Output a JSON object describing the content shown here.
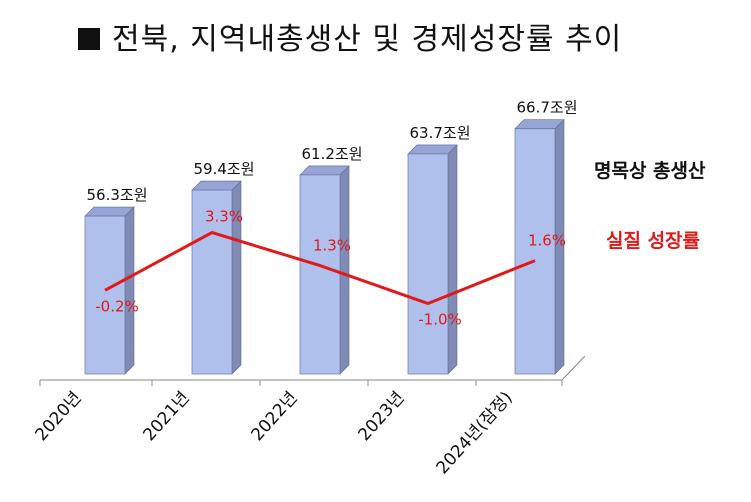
{
  "title": "전북, 지역내총생산 및 경제성장률 추이",
  "legend": {
    "nominal_label": "명목상 총생산",
    "real_label": "실질 성장률"
  },
  "colors": {
    "bar_front": "#b0c0ec",
    "bar_side": "#7f8bb5",
    "bar_top": "#96a5d5",
    "line": "#e11919",
    "title": "#111111"
  },
  "chart_data": {
    "type": "bar",
    "categories": [
      "2020년",
      "2021년",
      "2022년",
      "2023년",
      "2024년(잠정)"
    ],
    "series": [
      {
        "name": "명목상 총생산",
        "type": "bar",
        "values": [
          56.3,
          59.4,
          61.2,
          63.7,
          66.7
        ],
        "labels": [
          "56.3조원",
          "59.4조원",
          "61.2조원",
          "63.7조원",
          "66.7조원"
        ]
      },
      {
        "name": "실질 성장률",
        "type": "line",
        "values": [
          -0.2,
          3.3,
          1.3,
          -1.0,
          1.6
        ],
        "labels": [
          "-0.2%",
          "3.3%",
          "1.3%",
          "-1.0%",
          "1.6%"
        ]
      }
    ],
    "title": "전북, 지역내총생산 및 경제성장률 추이",
    "xlabel": "",
    "ylabel": "",
    "grid": false,
    "legend_position": "right"
  }
}
